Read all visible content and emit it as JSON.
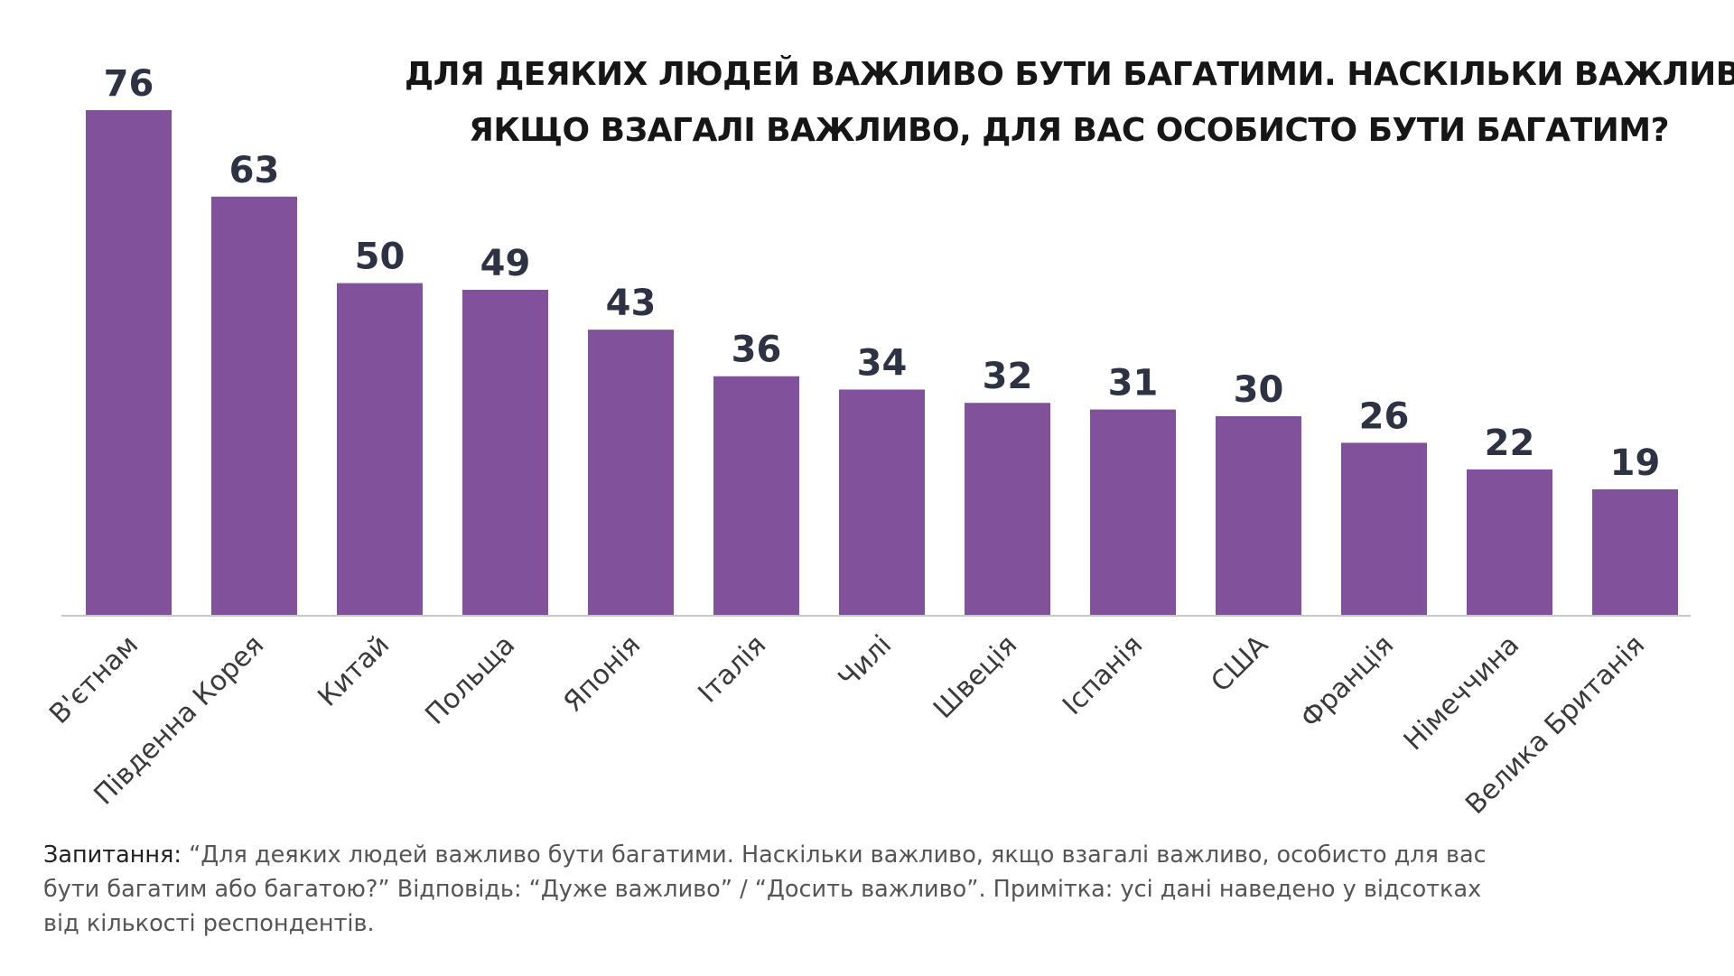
{
  "chart_data": {
    "type": "bar",
    "title_line1": "ДЛЯ ДЕЯКИХ ЛЮДЕЙ ВАЖЛИВО БУТИ БАГАТИМИ. НАСКІЛЬКИ ВАЖЛИВО,",
    "title_line2": "ЯКЩО ВЗАГАЛІ ВАЖЛИВО, ДЛЯ ВАС ОСОБИСТО БУТИ БАГАТИМ?",
    "categories": [
      "В'єтнам",
      "Південна Корея",
      "Китай",
      "Польща",
      "Японія",
      "Італія",
      "Чилі",
      "Швеція",
      "Іспанія",
      "США",
      "Франція",
      "Німеччина",
      "Велика Британія"
    ],
    "values": [
      76,
      63,
      50,
      49,
      43,
      36,
      34,
      32,
      31,
      30,
      26,
      22,
      19
    ],
    "ylim": [
      0,
      76
    ],
    "grid": false,
    "bar_color": "#82519b",
    "axis_color": "#c8c8c8"
  },
  "note": {
    "label": "Запитання:",
    "line1_rest": " “Для деяких людей важливо бути багатими. Наскільки важливо, якщо взагалі важливо, особисто для вас",
    "line2": "бути багатим або багатою?” Відповідь: “Дуже важливо” / “Досить важливо”. Примітка: усі дані наведено у відсотках",
    "line3": "від кількості респондентів."
  }
}
